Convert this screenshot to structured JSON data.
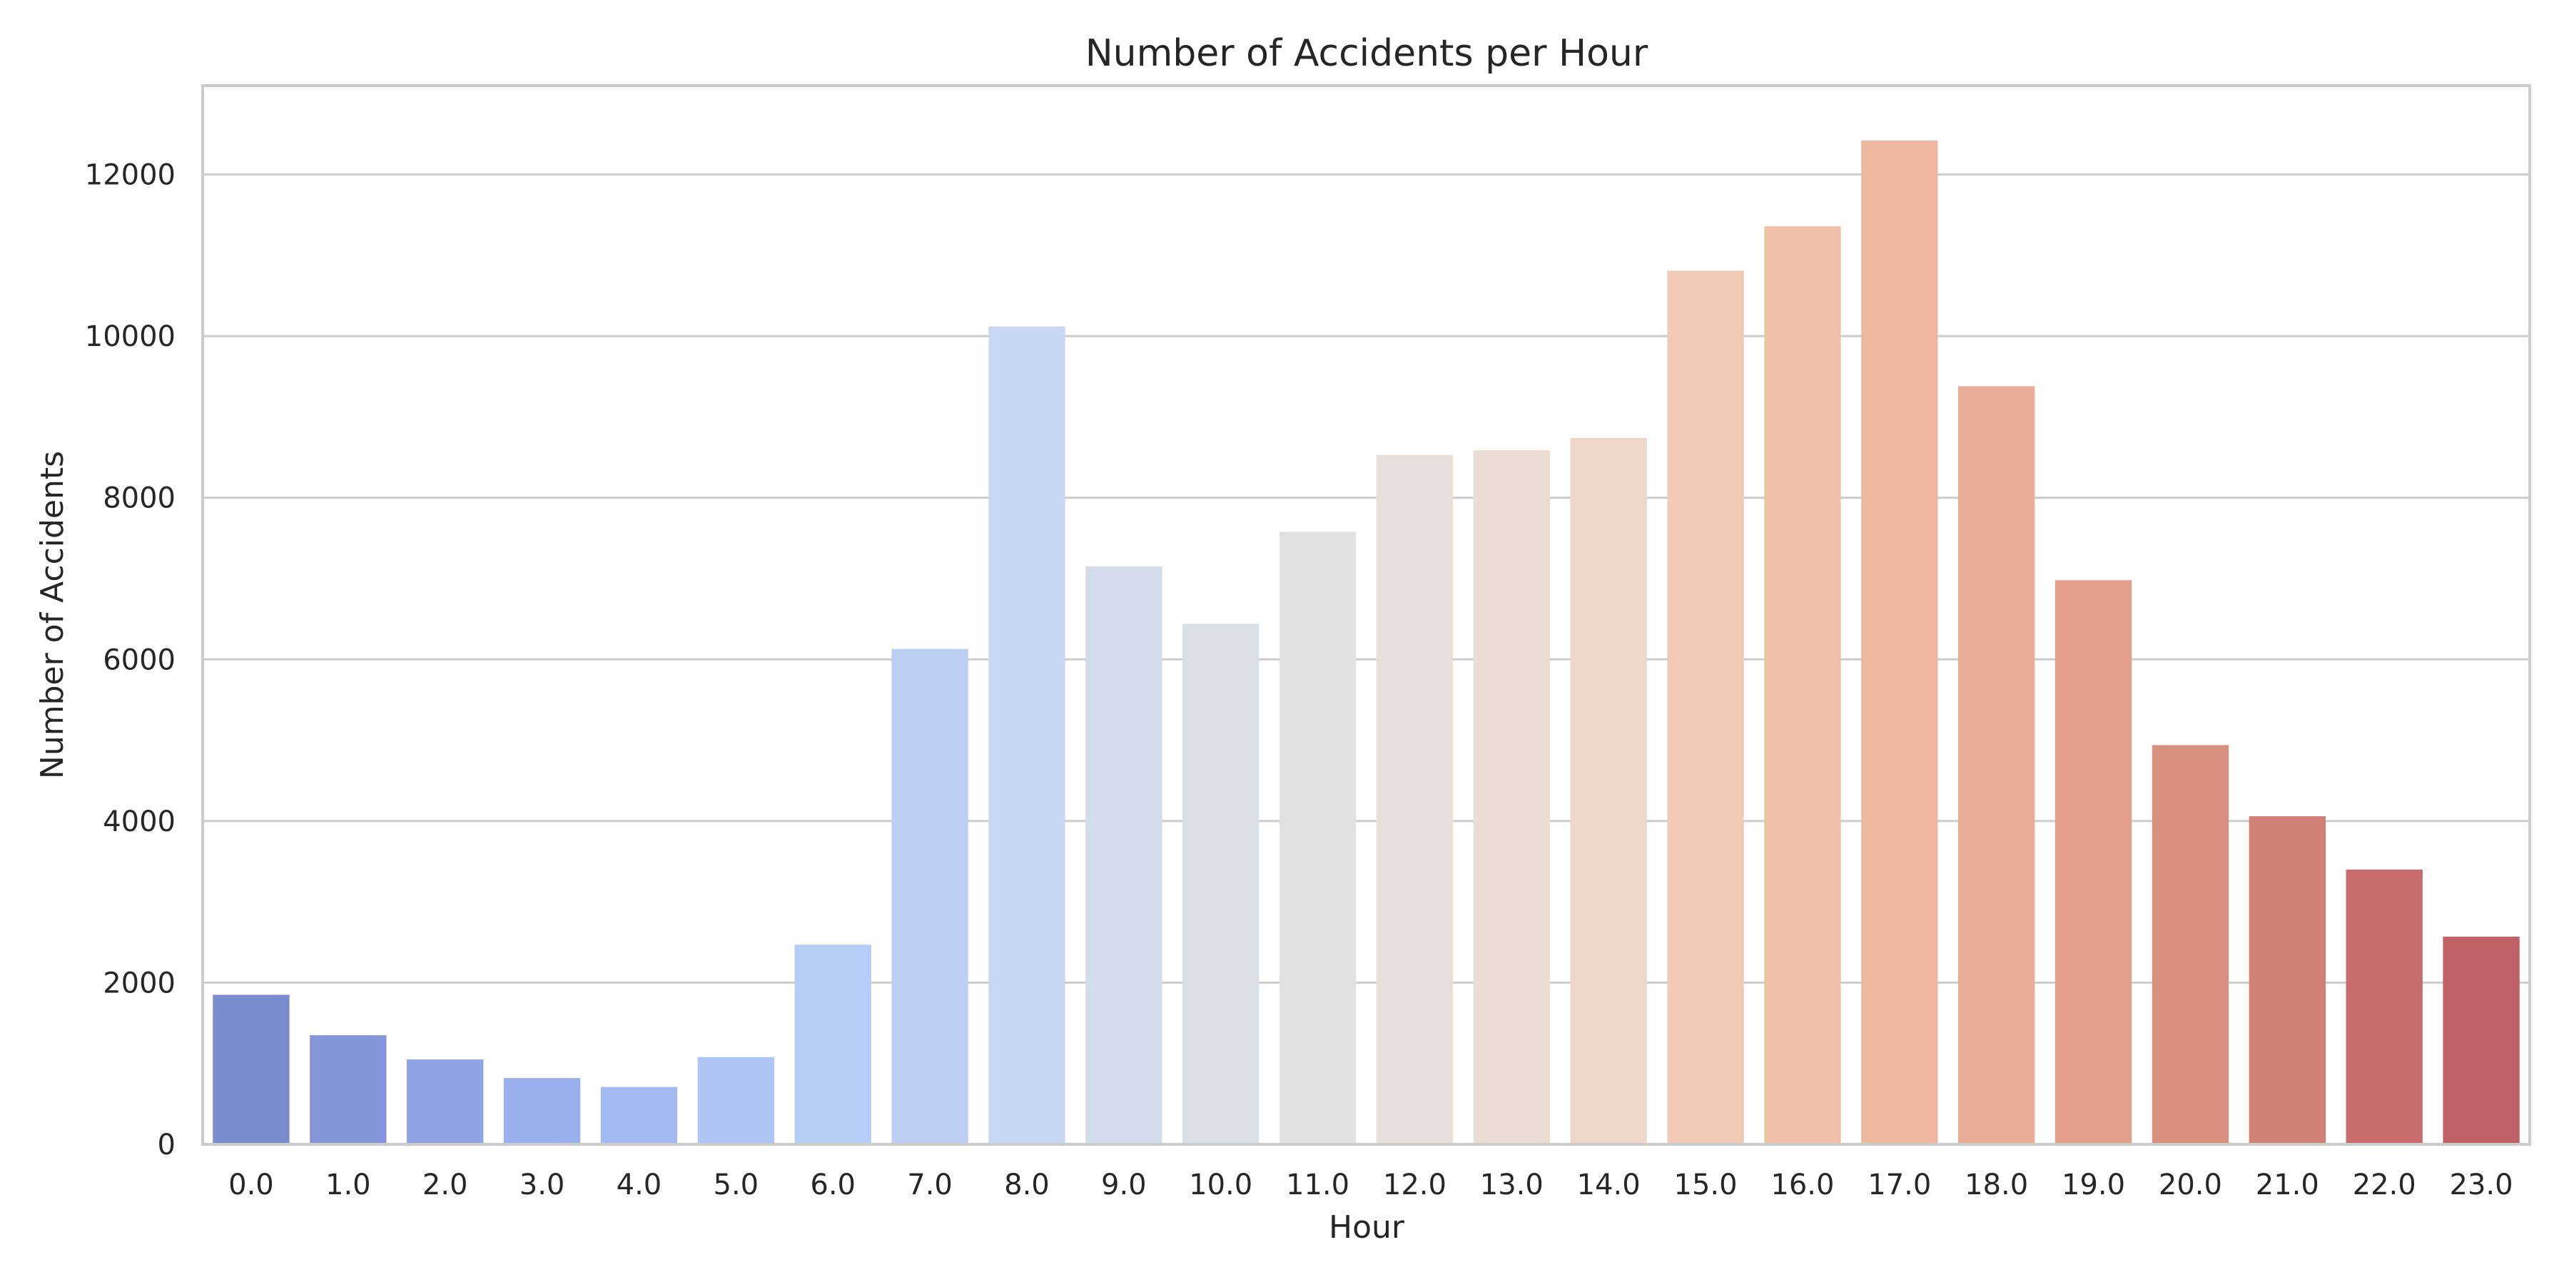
{
  "chart_data": {
    "type": "bar",
    "title": "Number of Accidents per Hour",
    "xlabel": "Hour",
    "ylabel": "Number of Accidents",
    "categories": [
      "0.0",
      "1.0",
      "2.0",
      "3.0",
      "4.0",
      "5.0",
      "6.0",
      "7.0",
      "8.0",
      "9.0",
      "10.0",
      "11.0",
      "12.0",
      "13.0",
      "14.0",
      "15.0",
      "16.0",
      "17.0",
      "18.0",
      "19.0",
      "20.0",
      "21.0",
      "22.0",
      "23.0"
    ],
    "values": [
      1850,
      1350,
      1050,
      820,
      710,
      1080,
      2470,
      6130,
      10120,
      7150,
      6440,
      7580,
      8530,
      8590,
      8740,
      10810,
      11360,
      12420,
      9380,
      6980,
      4940,
      4060,
      3400,
      2570
    ],
    "ylim": [
      0,
      13100
    ],
    "yticks": [
      0,
      2000,
      4000,
      6000,
      8000,
      10000,
      12000
    ],
    "grid": "horizontal",
    "colors": [
      "#7b8bcf",
      "#8496d9",
      "#8ea2e4",
      "#99afee",
      "#a4bbf2",
      "#afc6f5",
      "#b7cdf5",
      "#bdd0f4",
      "#c8d7f2",
      "#d3dcea",
      "#dbe0e6",
      "#e0e1e3",
      "#e6dfdb",
      "#ebdcd4",
      "#efd6cb",
      "#f0cab6",
      "#efc0aa",
      "#edb7a0",
      "#e8ac98",
      "#e39e8c",
      "#d98f7f",
      "#d07f75",
      "#c76c6a",
      "#bf5f66"
    ]
  }
}
